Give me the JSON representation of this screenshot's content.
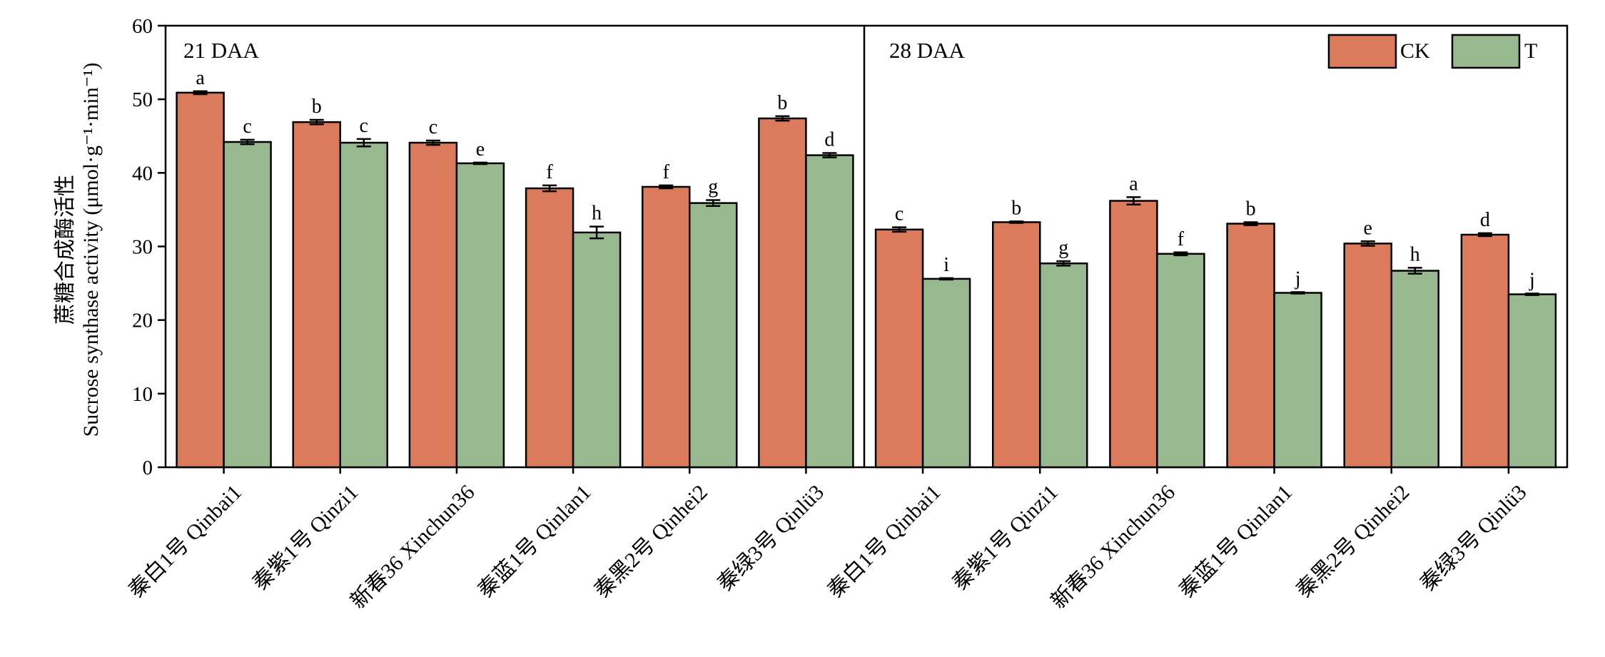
{
  "chart_data": {
    "type": "bar",
    "ylabel_cn": "蔗糖合成酶活性",
    "ylabel_en": "Sucrose synthase activity (μmol·g⁻¹·min⁻¹)",
    "ylim": [
      0,
      60
    ],
    "yticks": [
      0,
      10,
      20,
      30,
      40,
      50,
      60
    ],
    "grid": false,
    "legend_position": "top-right",
    "colors": {
      "CK": "#db7b5b",
      "T": "#98b98f"
    },
    "series_names": [
      "CK",
      "T"
    ],
    "panels": [
      {
        "label": "21 DAA",
        "categories": [
          "秦白1号 Qinbai1",
          "秦紫1号 Qinzi1",
          "新春36 Xinchun36",
          "秦蓝1号 Qinlan1",
          "秦黑2号 Qinhei2",
          "秦绿3号 Qinlü3"
        ],
        "series": [
          {
            "name": "CK",
            "values": [
              50.9,
              46.9,
              44.1,
              37.9,
              38.1,
              47.4
            ],
            "errors": [
              0.2,
              0.3,
              0.3,
              0.4,
              0.2,
              0.3
            ],
            "letters": [
              "a",
              "b",
              "c",
              "f",
              "f",
              "b"
            ]
          },
          {
            "name": "T",
            "values": [
              44.2,
              44.1,
              41.3,
              31.9,
              35.9,
              42.4
            ],
            "errors": [
              0.3,
              0.5,
              0.1,
              0.8,
              0.4,
              0.3
            ],
            "letters": [
              "c",
              "c",
              "e",
              "h",
              "g",
              "d"
            ]
          }
        ]
      },
      {
        "label": "28 DAA",
        "categories": [
          "秦白1号 Qinbai1",
          "秦紫1号 Qinzi1",
          "新春36 Xinchun36",
          "秦蓝1号 Qinlan1",
          "秦黑2号 Qinhei2",
          "秦绿3号 Qinlü3"
        ],
        "series": [
          {
            "name": "CK",
            "values": [
              32.3,
              33.3,
              36.2,
              33.1,
              30.4,
              31.6
            ],
            "errors": [
              0.3,
              0.1,
              0.5,
              0.2,
              0.3,
              0.2
            ],
            "letters": [
              "c",
              "b",
              "a",
              "b",
              "e",
              "d"
            ]
          },
          {
            "name": "T",
            "values": [
              25.6,
              27.7,
              29.0,
              23.7,
              26.7,
              23.5
            ],
            "errors": [
              0.1,
              0.3,
              0.2,
              0.1,
              0.4,
              0.1
            ],
            "letters": [
              "i",
              "g",
              "f",
              "j",
              "h",
              "j"
            ]
          }
        ]
      }
    ]
  }
}
